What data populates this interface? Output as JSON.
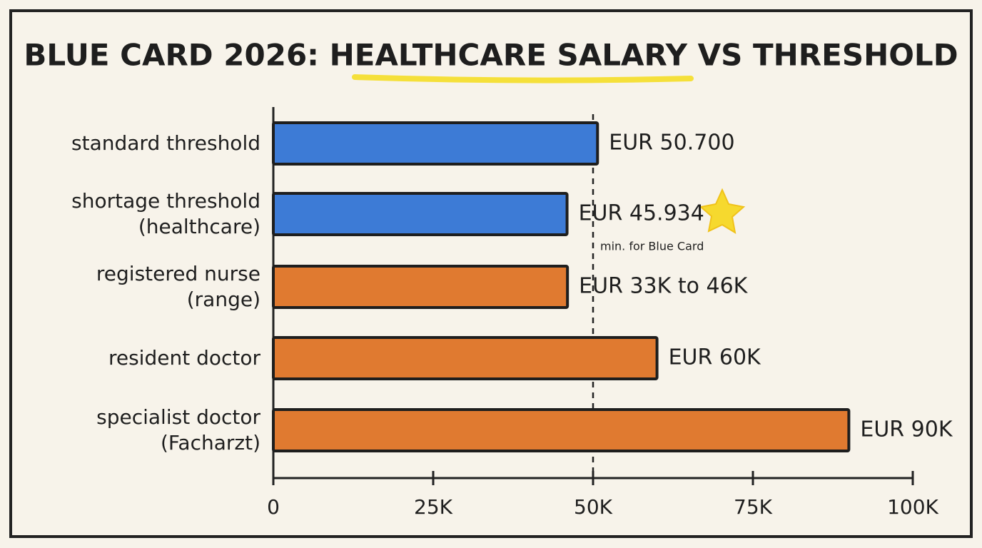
{
  "chart_data": {
    "type": "hbar",
    "title": "BLUE CARD 2026: HEALTHCARE SALARY VS THRESHOLD",
    "categories": [
      "standard threshold",
      "shortage threshold (healthcare)",
      "registered nurse (range)",
      "resident doctor",
      "specialist doctor (Facharzt)"
    ],
    "values": [
      50700,
      45934,
      46000,
      60000,
      90000
    ],
    "value_labels": [
      "EUR 50.700",
      "EUR 45.934",
      "EUR 33K to 46K",
      "EUR 60K",
      "EUR 90K"
    ],
    "colors": [
      "#3d7bd6",
      "#3d7bd6",
      "#e07a30",
      "#e07a30",
      "#e07a30"
    ],
    "xlim": [
      0,
      100000
    ],
    "xticks": [
      0,
      {
        "value": 25000,
        "label": "25K"
      },
      {
        "value": 50000,
        "label": "50K"
      },
      {
        "value": 75000,
        "label": "75K"
      },
      {
        "value": 100000,
        "label": "100K"
      }
    ],
    "reference_line": {
      "value": 50000,
      "label": "min. for Blue Card"
    }
  }
}
